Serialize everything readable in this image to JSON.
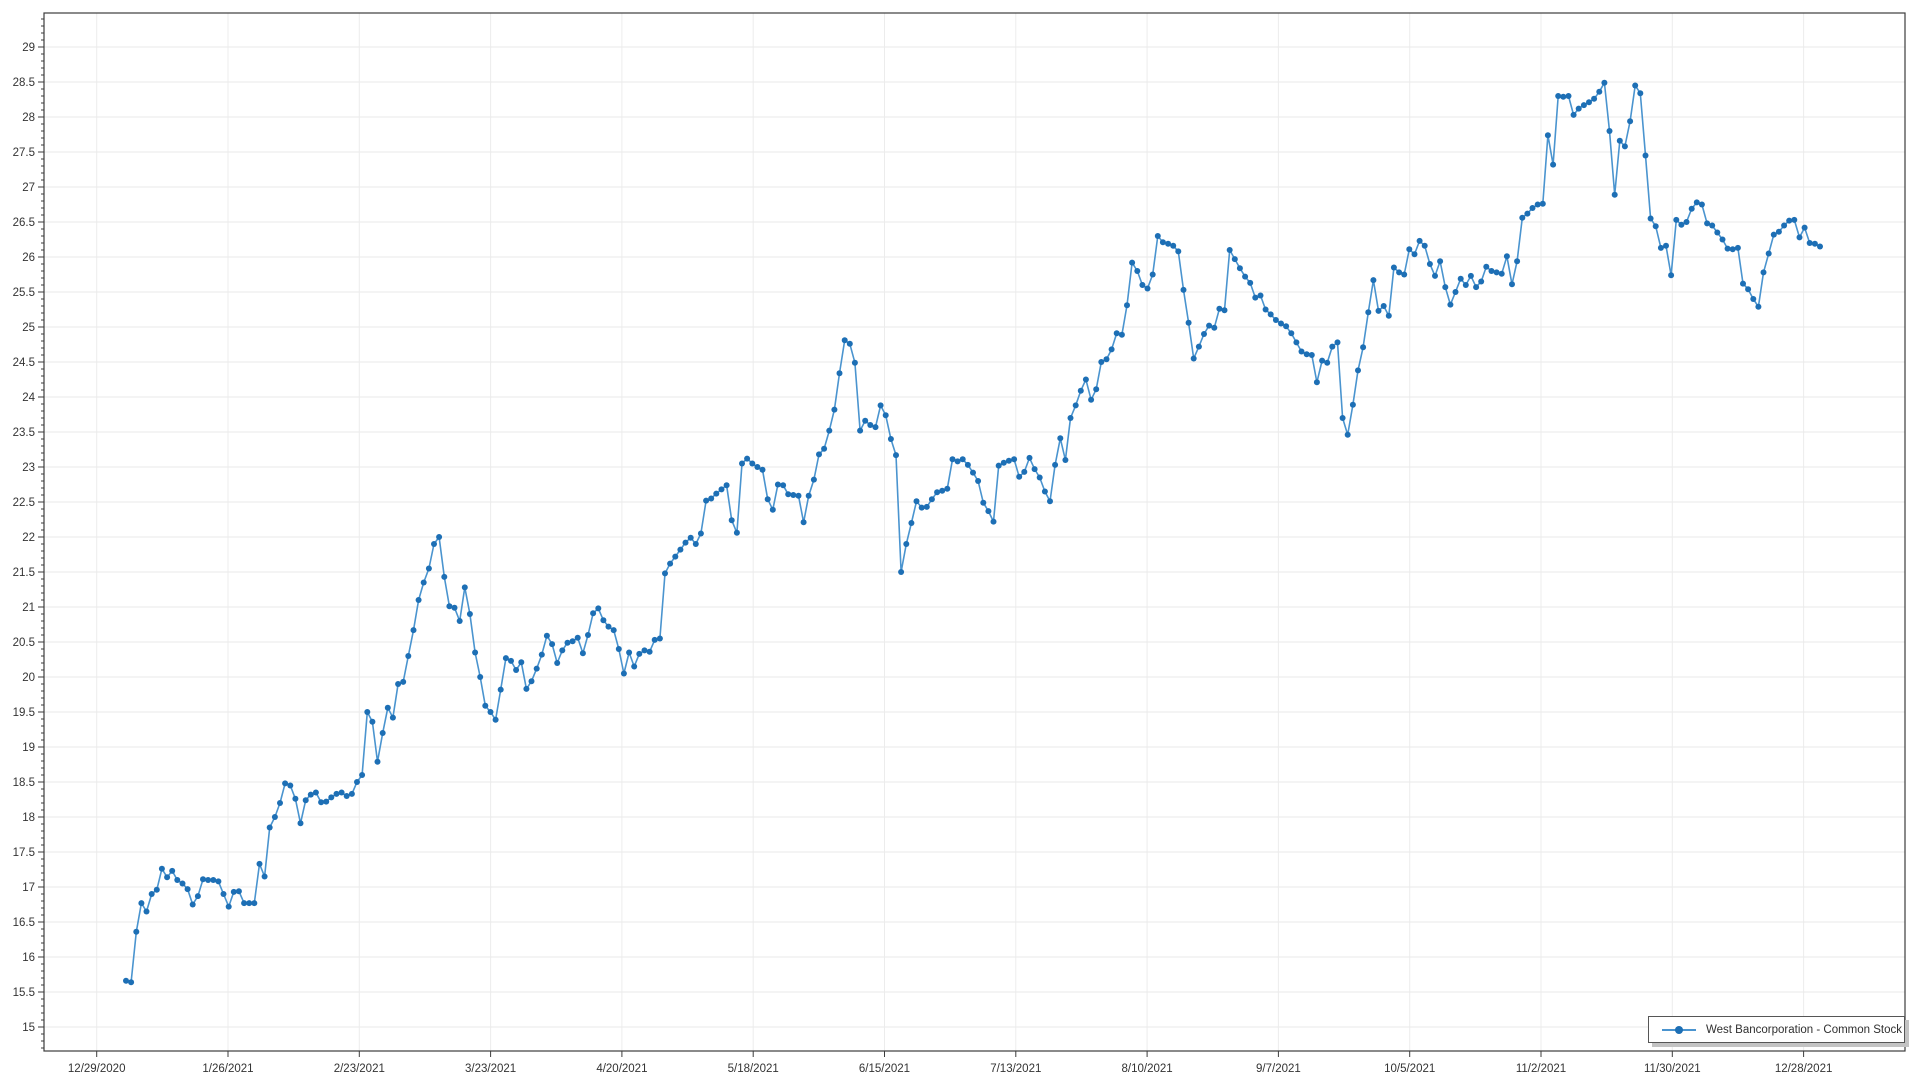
{
  "legend": {
    "label": "West Bancorporation - Common Stock"
  },
  "colors": {
    "line": "#4a94cf",
    "marker": "#1d6fb5",
    "grid_h": "#e8e8e8",
    "grid_v": "#ececec",
    "axis": "#3c3c3c",
    "tick_text": "#333333",
    "legend_border": "#565656",
    "legend_shadow": "#c3c3c3",
    "background": "#ffffff"
  },
  "chart_data": {
    "type": "line",
    "title": "",
    "xlabel": "",
    "ylabel": "",
    "grid": true,
    "legend_position": "bottom-right",
    "x_tick_labels": [
      "12/29/2020",
      "1/26/2021",
      "2/23/2021",
      "3/23/2021",
      "4/20/2021",
      "5/18/2021",
      "6/15/2021",
      "7/13/2021",
      "8/10/2021",
      "9/7/2021",
      "10/5/2021",
      "11/2/2021",
      "11/30/2021",
      "12/28/2021"
    ],
    "y_axis": {
      "label_min": 15,
      "label_max": 29,
      "label_step": 0.5,
      "minor_step": 0.1,
      "ylim": [
        14.66,
        29.49
      ]
    },
    "series": [
      {
        "name": "West Bancorporation - Common Stock",
        "marker": "circle",
        "values": [
          15.66,
          15.64,
          16.36,
          16.77,
          16.65,
          16.9,
          16.96,
          17.26,
          17.14,
          17.23,
          17.1,
          17.05,
          16.97,
          16.75,
          16.87,
          17.11,
          17.1,
          17.1,
          17.08,
          16.9,
          16.72,
          16.93,
          16.94,
          16.77,
          16.77,
          16.77,
          17.33,
          17.15,
          17.85,
          18.0,
          18.2,
          18.48,
          18.45,
          18.26,
          17.91,
          18.24,
          18.32,
          18.35,
          18.21,
          18.22,
          18.28,
          18.33,
          18.35,
          18.3,
          18.33,
          18.5,
          18.6,
          19.5,
          19.36,
          18.79,
          19.2,
          19.56,
          19.42,
          19.9,
          19.93,
          20.3,
          20.67,
          21.1,
          21.35,
          21.55,
          21.9,
          22.0,
          21.43,
          21.01,
          20.99,
          20.8,
          21.28,
          20.9,
          20.35,
          20.0,
          19.59,
          19.5,
          19.39,
          19.82,
          20.27,
          20.23,
          20.1,
          20.21,
          19.83,
          19.94,
          20.12,
          20.32,
          20.59,
          20.47,
          20.2,
          20.38,
          20.49,
          20.51,
          20.56,
          20.34,
          20.6,
          20.91,
          20.98,
          20.81,
          20.72,
          20.67,
          20.4,
          20.05,
          20.35,
          20.15,
          20.33,
          20.38,
          20.36,
          20.53,
          20.55,
          21.48,
          21.62,
          21.72,
          21.82,
          21.92,
          21.99,
          21.9,
          22.05,
          22.52,
          22.55,
          22.62,
          22.68,
          22.74,
          22.24,
          22.06,
          23.05,
          23.12,
          23.05,
          23.0,
          22.96,
          22.54,
          22.39,
          22.75,
          22.74,
          22.61,
          22.6,
          22.59,
          22.21,
          22.59,
          22.82,
          23.18,
          23.26,
          23.52,
          23.82,
          24.34,
          24.81,
          24.76,
          24.49,
          23.52,
          23.66,
          23.6,
          23.57,
          23.88,
          23.74,
          23.4,
          23.17,
          21.5,
          21.9,
          22.2,
          22.51,
          22.42,
          22.43,
          22.54,
          22.64,
          22.66,
          22.69,
          23.11,
          23.08,
          23.11,
          23.03,
          22.92,
          22.8,
          22.49,
          22.37,
          22.22,
          23.02,
          23.06,
          23.09,
          23.11,
          22.86,
          22.93,
          23.13,
          22.97,
          22.85,
          22.65,
          22.51,
          23.03,
          23.41,
          23.1,
          23.7,
          23.88,
          24.09,
          24.25,
          23.96,
          24.11,
          24.5,
          24.54,
          24.68,
          24.91,
          24.89,
          25.31,
          25.92,
          25.8,
          25.6,
          25.55,
          25.75,
          26.3,
          26.21,
          26.19,
          26.16,
          26.08,
          25.53,
          25.06,
          24.55,
          24.72,
          24.9,
          25.02,
          24.99,
          25.26,
          25.24,
          26.1,
          25.97,
          25.84,
          25.72,
          25.63,
          25.42,
          25.45,
          25.25,
          25.18,
          25.1,
          25.05,
          25.01,
          24.91,
          24.78,
          24.65,
          24.61,
          24.6,
          24.21,
          24.52,
          24.49,
          24.72,
          24.78,
          23.7,
          23.46,
          23.89,
          24.38,
          24.71,
          25.21,
          25.67,
          25.23,
          25.3,
          25.16,
          25.85,
          25.78,
          25.75,
          26.11,
          26.04,
          26.23,
          26.16,
          25.9,
          25.73,
          25.94,
          25.57,
          25.32,
          25.5,
          25.69,
          25.6,
          25.73,
          25.57,
          25.65,
          25.86,
          25.8,
          25.78,
          25.76,
          26.01,
          25.61,
          25.94,
          26.56,
          26.62,
          26.7,
          26.75,
          26.76,
          27.74,
          27.32,
          28.3,
          28.29,
          28.3,
          28.03,
          28.12,
          28.17,
          28.21,
          28.26,
          28.36,
          28.49,
          27.8,
          26.89,
          27.66,
          27.58,
          27.94,
          28.45,
          28.34,
          27.45,
          26.55,
          26.44,
          26.13,
          26.16,
          25.74,
          26.53,
          26.46,
          26.5,
          26.69,
          26.78,
          26.75,
          26.48,
          26.45,
          26.35,
          26.25,
          26.12,
          26.11,
          26.13,
          25.62,
          25.54,
          25.4,
          25.29,
          25.78,
          26.05,
          26.32,
          26.36,
          26.45,
          26.52,
          26.53,
          26.28,
          26.42,
          26.2,
          26.19,
          26.15
        ]
      }
    ]
  }
}
